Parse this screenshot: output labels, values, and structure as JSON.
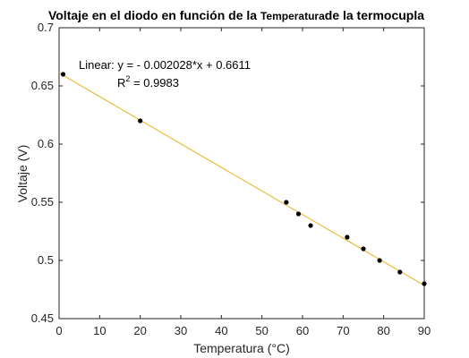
{
  "chart_data": {
    "type": "scatter",
    "title": {
      "part1": "Voltaje en el diodo en función de la ",
      "part2": "Temperatura",
      "part3": "de la termocupla"
    },
    "xlabel": "Temperatura (°C)",
    "ylabel": "Voltaje (V)",
    "xlim": [
      0,
      90
    ],
    "ylim": [
      0.45,
      0.7
    ],
    "xticks": [
      0,
      10,
      20,
      30,
      40,
      50,
      60,
      70,
      80,
      90
    ],
    "yticks": [
      0.45,
      0.5,
      0.55,
      0.6,
      0.65,
      0.7
    ],
    "ytick_labels": [
      "0.45",
      "0.5",
      "0.55",
      "0.6",
      "0.65",
      "0.7"
    ],
    "grid": false,
    "points": [
      {
        "x": 1,
        "y": 0.66
      },
      {
        "x": 20,
        "y": 0.62
      },
      {
        "x": 56,
        "y": 0.55
      },
      {
        "x": 59,
        "y": 0.54
      },
      {
        "x": 62,
        "y": 0.53
      },
      {
        "x": 71,
        "y": 0.52
      },
      {
        "x": 75,
        "y": 0.51
      },
      {
        "x": 79,
        "y": 0.5
      },
      {
        "x": 84,
        "y": 0.49
      },
      {
        "x": 90,
        "y": 0.48
      }
    ],
    "fit": {
      "type": "linear",
      "slope": -0.002028,
      "intercept": 0.6611,
      "x_range": [
        0,
        90
      ],
      "equation_label": "Linear:  y = - 0.002028*x + 0.6611",
      "r2_prefix": "R",
      "r2_exponent": "2",
      "r2_value_text": " = 0.9983"
    },
    "colors": {
      "points": "#000000",
      "fit_line": "#EDB120",
      "axes": "#262626"
    }
  }
}
